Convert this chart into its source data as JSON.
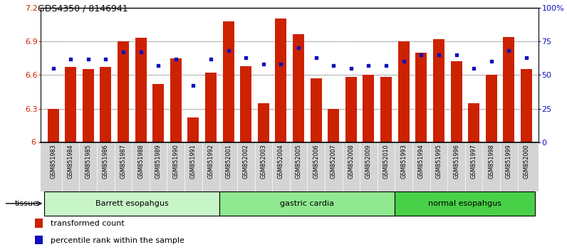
{
  "title": "GDS4350 / 8146941",
  "samples": [
    "GSM851983",
    "GSM851984",
    "GSM851985",
    "GSM851986",
    "GSM851987",
    "GSM851988",
    "GSM851989",
    "GSM851990",
    "GSM851991",
    "GSM851992",
    "GSM852001",
    "GSM852002",
    "GSM852003",
    "GSM852004",
    "GSM852005",
    "GSM852006",
    "GSM852007",
    "GSM852008",
    "GSM852009",
    "GSM852010",
    "GSM851993",
    "GSM851994",
    "GSM851995",
    "GSM851996",
    "GSM851997",
    "GSM851998",
    "GSM851999",
    "GSM852000"
  ],
  "red_values": [
    6.3,
    6.67,
    6.65,
    6.67,
    6.9,
    6.93,
    6.52,
    6.75,
    6.22,
    6.62,
    7.08,
    6.68,
    6.35,
    7.1,
    6.96,
    6.57,
    6.3,
    6.58,
    6.6,
    6.58,
    6.9,
    6.8,
    6.92,
    6.72,
    6.35,
    6.6,
    6.94,
    6.65
  ],
  "blue_percentiles": [
    55,
    62,
    62,
    62,
    67,
    67,
    57,
    62,
    42,
    62,
    68,
    63,
    58,
    58,
    70,
    63,
    57,
    55,
    57,
    57,
    60,
    65,
    65,
    65,
    55,
    60,
    68,
    63
  ],
  "groups": [
    {
      "label": "Barrett esopahgus",
      "start": 0,
      "end": 10,
      "color": "#c8f5c8"
    },
    {
      "label": "gastric cardia",
      "start": 10,
      "end": 20,
      "color": "#90e890"
    },
    {
      "label": "normal esopahgus",
      "start": 20,
      "end": 28,
      "color": "#48d048"
    }
  ],
  "y_min": 6.0,
  "y_max": 7.2,
  "y_ticks": [
    6.0,
    6.3,
    6.6,
    6.9,
    7.2
  ],
  "right_y_ticks": [
    0,
    25,
    50,
    75,
    100
  ],
  "right_y_labels": [
    "0",
    "25",
    "50",
    "75",
    "100%"
  ],
  "bar_color": "#cc2200",
  "dot_color": "#1111bb",
  "label_bg_color": "#d4d4d4",
  "legend_items": [
    {
      "label": "transformed count",
      "color": "#cc2200"
    },
    {
      "label": "percentile rank within the sample",
      "color": "#1111bb"
    }
  ]
}
